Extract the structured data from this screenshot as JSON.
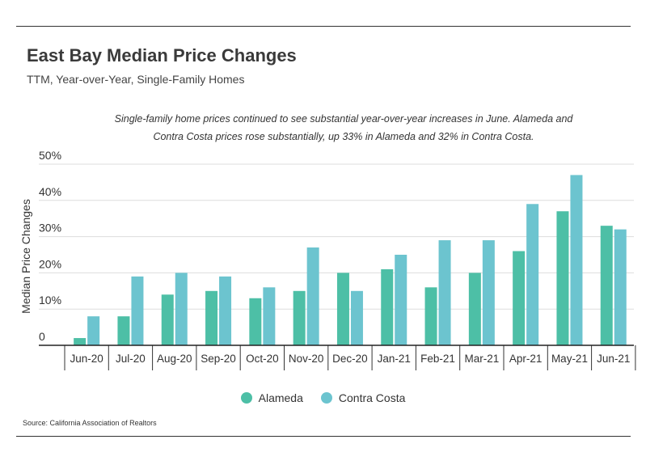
{
  "title": "East Bay Median Price Changes",
  "subtitle": "TTM, Year-over-Year, Single-Family Homes",
  "annotation": [
    "Single-family home prices continued to see substantial year-over-year increases in June. Alameda and",
    "Contra Costa prices rose substantially, up 33% in Alameda and 32% in Contra Costa."
  ],
  "source": "Source:  California Association of Realtors",
  "chart_data": {
    "type": "bar",
    "title": "East Bay Median Price Changes",
    "subtitle": "TTM, Year-over-Year, Single-Family Homes",
    "xlabel": "",
    "ylabel": "Median Price Changes",
    "ylim": [
      0,
      50
    ],
    "yticks": [
      0,
      10,
      20,
      30,
      40,
      50
    ],
    "ytick_labels": [
      "0",
      "10%",
      "20%",
      "30%",
      "40%",
      "50%"
    ],
    "grid": true,
    "legend_position": "bottom",
    "categories": [
      "Jun-20",
      "Jul-20",
      "Aug-20",
      "Sep-20",
      "Oct-20",
      "Nov-20",
      "Dec-20",
      "Jan-21",
      "Feb-21",
      "Mar-21",
      "Apr-21",
      "May-21",
      "Jun-21"
    ],
    "series": [
      {
        "name": "Alameda",
        "color": "#4dbfa6",
        "values": [
          2,
          8,
          14,
          15,
          13,
          15,
          20,
          21,
          16,
          20,
          26,
          37,
          33
        ]
      },
      {
        "name": "Contra Costa",
        "color": "#6cc4cf",
        "values": [
          8,
          19,
          20,
          19,
          16,
          27,
          15,
          25,
          29,
          29,
          39,
          47,
          32
        ]
      }
    ]
  }
}
